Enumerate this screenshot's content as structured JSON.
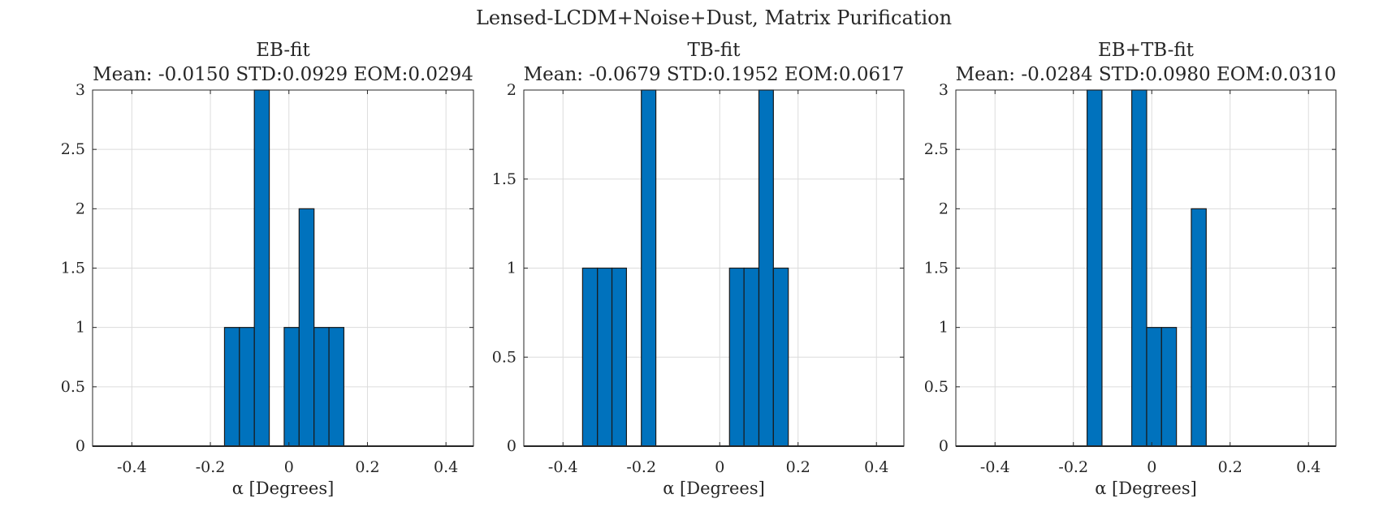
{
  "figure": {
    "suptitle": "Lensed-LCDM+Noise+Dust, Matrix Purification"
  },
  "chart_data": [
    {
      "type": "bar",
      "title": "EB-fit",
      "subtitle": "Mean: -0.0150 STD:0.0929 EOM:0.0294",
      "xlabel": "α [Degrees]",
      "ylabel": "",
      "xlim": [
        -0.5,
        0.47
      ],
      "ylim": [
        0,
        3
      ],
      "grid": true,
      "bar_color": "#0072BD",
      "xticks": [
        -0.4,
        -0.2,
        0,
        0.2,
        0.4
      ],
      "xtick_labels": [
        "-0.4",
        "-0.2",
        "0",
        "0.2",
        "0.4"
      ],
      "yticks": [
        0,
        0.5,
        1,
        1.5,
        2,
        2.5,
        3
      ],
      "ytick_labels": [
        "0",
        "0.5",
        "1",
        "1.5",
        "2",
        "2.5",
        "3"
      ],
      "bins": [
        {
          "x0": -0.164,
          "x1": -0.126,
          "count": 1
        },
        {
          "x0": -0.126,
          "x1": -0.088,
          "count": 1
        },
        {
          "x0": -0.088,
          "x1": -0.05,
          "count": 3
        },
        {
          "x0": -0.012,
          "x1": 0.026,
          "count": 1
        },
        {
          "x0": 0.026,
          "x1": 0.064,
          "count": 2
        },
        {
          "x0": 0.064,
          "x1": 0.102,
          "count": 1
        },
        {
          "x0": 0.102,
          "x1": 0.14,
          "count": 1
        }
      ]
    },
    {
      "type": "bar",
      "title": "TB-fit",
      "subtitle": "Mean: -0.0679 STD:0.1952 EOM:0.0617",
      "xlabel": "α [Degrees]",
      "ylabel": "",
      "xlim": [
        -0.5,
        0.47
      ],
      "ylim": [
        0,
        2
      ],
      "grid": true,
      "bar_color": "#0072BD",
      "xticks": [
        -0.4,
        -0.2,
        0,
        0.2,
        0.4
      ],
      "xtick_labels": [
        "-0.4",
        "-0.2",
        "0",
        "0.2",
        "0.4"
      ],
      "yticks": [
        0,
        0.5,
        1,
        1.5,
        2
      ],
      "ytick_labels": [
        "0",
        "0.5",
        "1",
        "1.5",
        "2"
      ],
      "bins": [
        {
          "x0": -0.35,
          "x1": -0.312,
          "count": 1
        },
        {
          "x0": -0.312,
          "x1": -0.275,
          "count": 1
        },
        {
          "x0": -0.275,
          "x1": -0.238,
          "count": 1
        },
        {
          "x0": -0.2,
          "x1": -0.163,
          "count": 2
        },
        {
          "x0": 0.025,
          "x1": 0.062,
          "count": 1
        },
        {
          "x0": 0.062,
          "x1": 0.1,
          "count": 1
        },
        {
          "x0": 0.1,
          "x1": 0.137,
          "count": 2
        },
        {
          "x0": 0.137,
          "x1": 0.175,
          "count": 1
        }
      ]
    },
    {
      "type": "bar",
      "title": "EB+TB-fit",
      "subtitle": "Mean: -0.0284 STD:0.0980 EOM:0.0310",
      "xlabel": "α [Degrees]",
      "ylabel": "",
      "xlim": [
        -0.5,
        0.47
      ],
      "ylim": [
        0,
        3
      ],
      "grid": true,
      "bar_color": "#0072BD",
      "xticks": [
        -0.4,
        -0.2,
        0,
        0.2,
        0.4
      ],
      "xtick_labels": [
        "-0.4",
        "-0.2",
        "0",
        "0.2",
        "0.4"
      ],
      "yticks": [
        0,
        0.5,
        1,
        1.5,
        2,
        2.5,
        3
      ],
      "ytick_labels": [
        "0",
        "0.5",
        "1",
        "1.5",
        "2",
        "2.5",
        "3"
      ],
      "bins": [
        {
          "x0": -0.165,
          "x1": -0.127,
          "count": 3
        },
        {
          "x0": -0.051,
          "x1": -0.013,
          "count": 3
        },
        {
          "x0": -0.013,
          "x1": 0.025,
          "count": 1
        },
        {
          "x0": 0.025,
          "x1": 0.063,
          "count": 1
        },
        {
          "x0": 0.101,
          "x1": 0.139,
          "count": 2
        }
      ]
    }
  ]
}
